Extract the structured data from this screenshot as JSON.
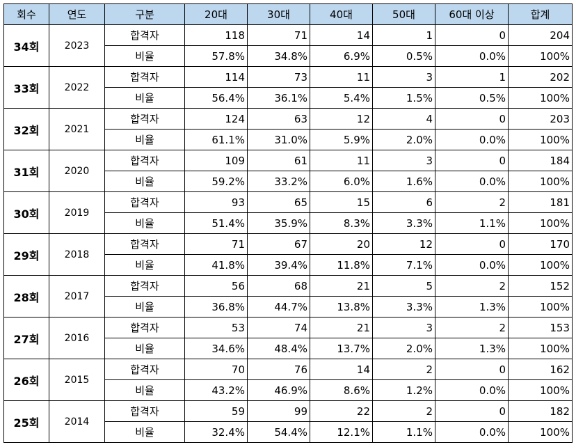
{
  "table": {
    "header": [
      "회수",
      "연도",
      "구분",
      "20대",
      "30대",
      "40대",
      "50대",
      "60대 이상",
      "합계"
    ],
    "groups": [
      {
        "round": "34회",
        "year": "2023",
        "rows": [
          {
            "label": "합격자",
            "cells": [
              "118",
              "71",
              "14",
              "1",
              "0",
              "204"
            ]
          },
          {
            "label": "비율",
            "cells": [
              "57.8%",
              "34.8%",
              "6.9%",
              "0.5%",
              "0.0%",
              "100%"
            ]
          }
        ]
      },
      {
        "round": "33회",
        "year": "2022",
        "rows": [
          {
            "label": "합격자",
            "cells": [
              "114",
              "73",
              "11",
              "3",
              "1",
              "202"
            ]
          },
          {
            "label": "비율",
            "cells": [
              "56.4%",
              "36.1%",
              "5.4%",
              "1.5%",
              "0.5%",
              "100%"
            ]
          }
        ]
      },
      {
        "round": "32회",
        "year": "2021",
        "rows": [
          {
            "label": "합격자",
            "cells": [
              "124",
              "63",
              "12",
              "4",
              "0",
              "203"
            ]
          },
          {
            "label": "비율",
            "cells": [
              "61.1%",
              "31.0%",
              "5.9%",
              "2.0%",
              "0.0%",
              "100%"
            ]
          }
        ]
      },
      {
        "round": "31회",
        "year": "2020",
        "rows": [
          {
            "label": "합격자",
            "cells": [
              "109",
              "61",
              "11",
              "3",
              "0",
              "184"
            ]
          },
          {
            "label": "비율",
            "cells": [
              "59.2%",
              "33.2%",
              "6.0%",
              "1.6%",
              "0.0%",
              "100%"
            ]
          }
        ]
      },
      {
        "round": "30회",
        "year": "2019",
        "rows": [
          {
            "label": "합격자",
            "cells": [
              "93",
              "65",
              "15",
              "6",
              "2",
              "181"
            ]
          },
          {
            "label": "비율",
            "cells": [
              "51.4%",
              "35.9%",
              "8.3%",
              "3.3%",
              "1.1%",
              "100%"
            ]
          }
        ]
      },
      {
        "round": "29회",
        "year": "2018",
        "rows": [
          {
            "label": "합격자",
            "cells": [
              "71",
              "67",
              "20",
              "12",
              "0",
              "170"
            ]
          },
          {
            "label": "비율",
            "cells": [
              "41.8%",
              "39.4%",
              "11.8%",
              "7.1%",
              "0.0%",
              "100%"
            ]
          }
        ]
      },
      {
        "round": "28회",
        "year": "2017",
        "rows": [
          {
            "label": "합격자",
            "cells": [
              "56",
              "68",
              "21",
              "5",
              "2",
              "152"
            ]
          },
          {
            "label": "비율",
            "cells": [
              "36.8%",
              "44.7%",
              "13.8%",
              "3.3%",
              "1.3%",
              "100%"
            ]
          }
        ]
      },
      {
        "round": "27회",
        "year": "2016",
        "rows": [
          {
            "label": "합격자",
            "cells": [
              "53",
              "74",
              "21",
              "3",
              "2",
              "153"
            ]
          },
          {
            "label": "비율",
            "cells": [
              "34.6%",
              "48.4%",
              "13.7%",
              "2.0%",
              "1.3%",
              "100%"
            ]
          }
        ]
      },
      {
        "round": "26회",
        "year": "2015",
        "rows": [
          {
            "label": "합격자",
            "cells": [
              "70",
              "76",
              "14",
              "2",
              "0",
              "162"
            ]
          },
          {
            "label": "비율",
            "cells": [
              "43.2%",
              "46.9%",
              "8.6%",
              "1.2%",
              "0.0%",
              "100%"
            ]
          }
        ]
      },
      {
        "round": "25회",
        "year": "2014",
        "rows": [
          {
            "label": "합격자",
            "cells": [
              "59",
              "99",
              "22",
              "2",
              "0",
              "182"
            ]
          },
          {
            "label": "비율",
            "cells": [
              "32.4%",
              "54.4%",
              "12.1%",
              "1.1%",
              "0.0%",
              "100%"
            ]
          }
        ]
      }
    ]
  }
}
